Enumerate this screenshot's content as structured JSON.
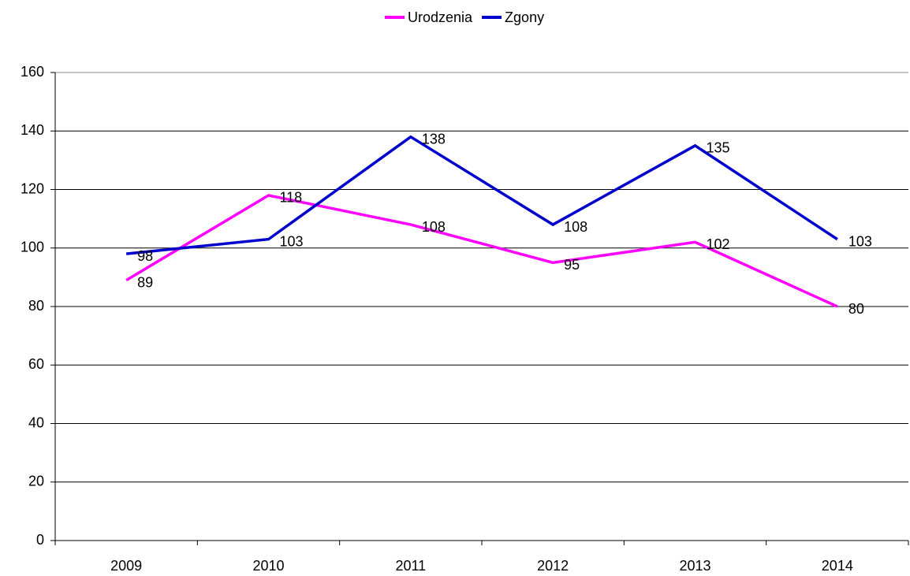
{
  "chart_data": {
    "type": "line",
    "categories": [
      "2009",
      "2010",
      "2011",
      "2012",
      "2013",
      "2014"
    ],
    "series": [
      {
        "name": "Urodzenia",
        "color": "#ff00ff",
        "values": [
          89,
          118,
          108,
          95,
          102,
          80
        ]
      },
      {
        "name": "Zgony",
        "color": "#0000cc",
        "values": [
          98,
          103,
          138,
          108,
          135,
          103
        ]
      }
    ],
    "ylim": [
      0,
      160
    ],
    "yticks": [
      0,
      20,
      40,
      60,
      80,
      100,
      120,
      140,
      160
    ],
    "grid": true,
    "legend": "top"
  }
}
